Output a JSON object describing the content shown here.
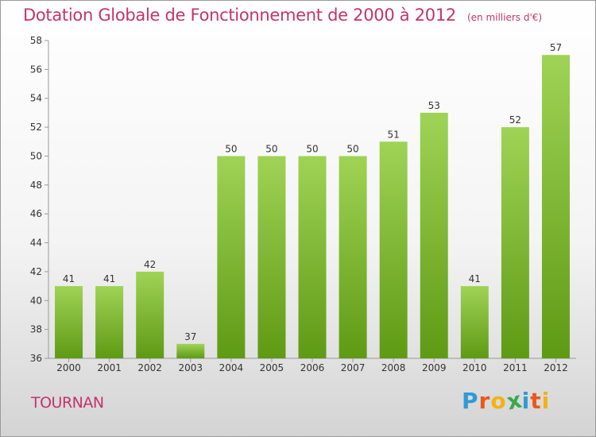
{
  "header": {
    "title": "Dotation Globale de Fonctionnement de 2000 à 2012",
    "unit": "(en milliers d'€)"
  },
  "footer": {
    "commune": "TOURNAN",
    "brand": "Proxiti"
  },
  "colors": {
    "title": "#c4346a",
    "bar_light": "#9fd356",
    "bar_dark": "#5f9a14",
    "logo": [
      "#2f9ad8",
      "#e8591a",
      "#f2b213",
      "#3aa84a",
      "#2f9ad8",
      "#e8591a",
      "#f2b213"
    ]
  },
  "chart_data": {
    "type": "bar",
    "categories": [
      "2000",
      "2001",
      "2002",
      "2003",
      "2004",
      "2005",
      "2006",
      "2007",
      "2008",
      "2009",
      "2010",
      "2011",
      "2012"
    ],
    "values": [
      41,
      41,
      42,
      37,
      50,
      50,
      50,
      50,
      51,
      53,
      41,
      52,
      57
    ],
    "data_labels": [
      "41",
      "41",
      "42",
      "37",
      "50",
      "50",
      "50",
      "50",
      "51",
      "53",
      "41",
      "52",
      "57"
    ],
    "ylim": [
      36,
      58
    ],
    "yticks": [
      36,
      38,
      40,
      42,
      44,
      46,
      48,
      50,
      52,
      54,
      56,
      58
    ],
    "grid": false
  }
}
